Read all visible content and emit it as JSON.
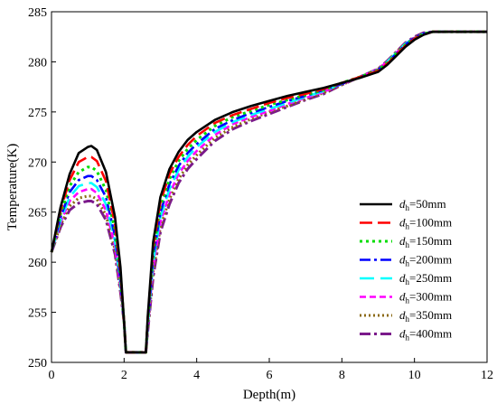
{
  "chart_data": {
    "type": "line",
    "xlabel": "Depth(m)",
    "ylabel": "Temperature(K)",
    "xlim": [
      0,
      12
    ],
    "ylim": [
      250,
      285
    ],
    "xticks": [
      "0",
      "2",
      "4",
      "6",
      "8",
      "10",
      "12"
    ],
    "yticks": [
      "250",
      "255",
      "260",
      "265",
      "270",
      "275",
      "280",
      "285"
    ],
    "legend_position": "center-right",
    "x": [
      0,
      0.25,
      0.5,
      0.75,
      1.0,
      1.1,
      1.25,
      1.5,
      1.75,
      1.9,
      2.0,
      2.05,
      2.6,
      2.65,
      2.8,
      3.0,
      3.25,
      3.5,
      3.75,
      4.0,
      4.5,
      5.0,
      5.5,
      6.0,
      6.5,
      7.0,
      7.5,
      8.0,
      8.5,
      9.0,
      9.25,
      9.5,
      9.75,
      10.0,
      10.25,
      10.5,
      11.0,
      12.0
    ],
    "series": [
      {
        "name": "d_h=50mm",
        "label_main": "d",
        "label_sub": "h",
        "label_rest": "=50mm",
        "color": "#000000",
        "dash": "solid",
        "values": [
          261.0,
          265.5,
          268.8,
          270.9,
          271.5,
          271.6,
          271.2,
          269.0,
          264.5,
          259.5,
          254.0,
          251.0,
          251.0,
          254.5,
          262.0,
          266.5,
          269.3,
          271.0,
          272.2,
          273.0,
          274.2,
          275.0,
          275.6,
          276.1,
          276.6,
          277.0,
          277.4,
          277.9,
          278.4,
          279.0,
          279.7,
          280.6,
          281.5,
          282.2,
          282.7,
          283.0,
          283.0,
          283.0
        ]
      },
      {
        "name": "d_h=100mm",
        "label_main": "d",
        "label_sub": "h",
        "label_rest": "=100mm",
        "color": "#ff0000",
        "dash": "longdash",
        "values": [
          261.0,
          265.2,
          268.2,
          270.0,
          270.5,
          270.5,
          270.1,
          268.1,
          263.8,
          259.0,
          254.0,
          251.0,
          251.0,
          254.3,
          261.5,
          266.0,
          268.8,
          270.5,
          271.7,
          272.6,
          273.9,
          274.7,
          275.3,
          275.9,
          276.4,
          276.8,
          277.3,
          277.9,
          278.5,
          279.1,
          279.8,
          280.7,
          281.6,
          282.3,
          282.7,
          283.0,
          283.0,
          283.0
        ]
      },
      {
        "name": "d_h=150mm",
        "label_main": "d",
        "label_sub": "h",
        "label_rest": "=150mm",
        "color": "#00dd00",
        "dash": "dotted",
        "values": [
          261.0,
          264.8,
          267.6,
          269.0,
          269.5,
          269.5,
          269.1,
          267.2,
          263.2,
          258.6,
          254.0,
          251.0,
          251.0,
          254.0,
          261.0,
          265.5,
          268.3,
          270.1,
          271.3,
          272.2,
          273.6,
          274.5,
          275.1,
          275.7,
          276.2,
          276.7,
          277.2,
          277.9,
          278.5,
          279.2,
          279.9,
          280.8,
          281.7,
          282.3,
          282.8,
          283.0,
          283.0,
          283.0
        ]
      },
      {
        "name": "d_h=200mm",
        "label_main": "d",
        "label_sub": "h",
        "label_rest": "=200mm",
        "color": "#0000ff",
        "dash": "dashdot",
        "values": [
          261.0,
          264.5,
          267.0,
          268.2,
          268.6,
          268.6,
          268.2,
          266.5,
          262.6,
          258.2,
          254.0,
          251.0,
          251.0,
          253.8,
          260.5,
          265.0,
          267.8,
          269.6,
          270.9,
          271.8,
          273.3,
          274.2,
          274.9,
          275.5,
          276.1,
          276.6,
          277.2,
          277.8,
          278.5,
          279.2,
          279.9,
          280.8,
          281.7,
          282.4,
          282.8,
          283.0,
          283.0,
          283.0
        ]
      },
      {
        "name": "d_h=250mm",
        "label_main": "d",
        "label_sub": "h",
        "label_rest": "=250mm",
        "color": "#00ffff",
        "dash": "longdash2",
        "values": [
          261.0,
          264.2,
          266.5,
          267.6,
          267.9,
          267.9,
          267.5,
          265.8,
          262.1,
          257.9,
          254.0,
          251.0,
          251.0,
          253.6,
          260.0,
          264.5,
          267.3,
          269.2,
          270.5,
          271.5,
          273.0,
          274.0,
          274.7,
          275.3,
          275.9,
          276.5,
          277.1,
          277.8,
          278.5,
          279.2,
          280.0,
          280.9,
          281.8,
          282.4,
          282.8,
          283.0,
          283.0,
          283.0
        ]
      },
      {
        "name": "d_h=300mm",
        "label_main": "d",
        "label_sub": "h",
        "label_rest": "=300mm",
        "color": "#ff00ff",
        "dash": "shortdash",
        "values": [
          261.0,
          264.0,
          266.1,
          267.0,
          267.3,
          267.3,
          266.9,
          265.2,
          261.6,
          257.6,
          254.0,
          251.0,
          251.0,
          253.4,
          259.5,
          264.0,
          266.8,
          268.8,
          270.1,
          271.1,
          272.7,
          273.8,
          274.5,
          275.1,
          275.8,
          276.4,
          277.0,
          277.8,
          278.5,
          279.3,
          280.0,
          280.9,
          281.8,
          282.4,
          282.8,
          283.0,
          283.0,
          283.0
        ]
      },
      {
        "name": "d_h=350mm",
        "label_main": "d",
        "label_sub": "h",
        "label_rest": "=350mm",
        "color": "#8b6914",
        "dash": "dotted2",
        "values": [
          261.0,
          263.7,
          265.6,
          266.4,
          266.6,
          266.6,
          266.3,
          264.7,
          261.2,
          257.3,
          254.0,
          251.0,
          251.0,
          253.2,
          259.0,
          263.5,
          266.3,
          268.3,
          269.7,
          270.7,
          272.4,
          273.5,
          274.3,
          275.0,
          275.6,
          276.3,
          276.9,
          277.7,
          278.5,
          279.3,
          280.0,
          281.0,
          281.8,
          282.4,
          282.8,
          283.0,
          283.0,
          283.0
        ]
      },
      {
        "name": "d_h=400mm",
        "label_main": "d",
        "label_sub": "h",
        "label_rest": "=400mm",
        "color": "#7b1a8b",
        "dash": "dashdot2",
        "values": [
          261.0,
          263.5,
          265.2,
          265.9,
          266.1,
          266.1,
          265.8,
          264.2,
          260.8,
          257.0,
          254.0,
          251.0,
          251.0,
          253.0,
          258.5,
          263.0,
          265.8,
          267.9,
          269.3,
          270.3,
          272.1,
          273.3,
          274.1,
          274.8,
          275.5,
          276.2,
          276.8,
          277.7,
          278.5,
          279.3,
          280.1,
          281.0,
          281.9,
          282.5,
          282.9,
          283.0,
          283.0,
          283.0
        ]
      }
    ]
  }
}
